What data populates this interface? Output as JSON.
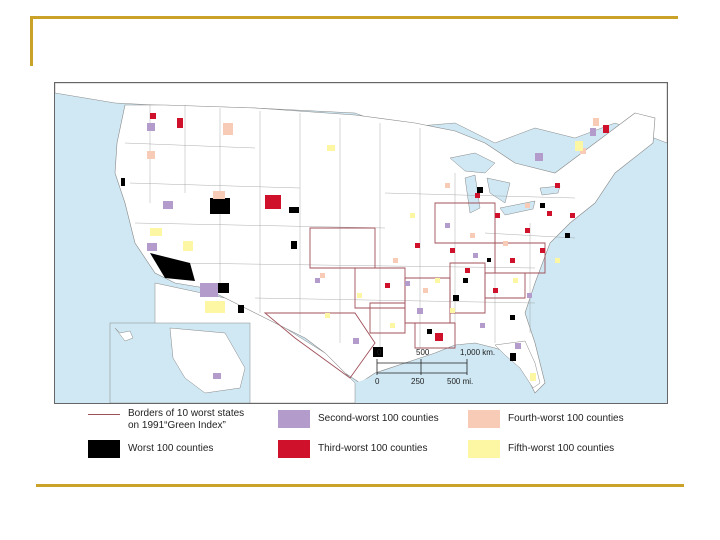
{
  "map": {
    "scale_km": [
      "0",
      "500",
      "1,000 km."
    ],
    "scale_mi": [
      "0",
      "250",
      "500 mi."
    ]
  },
  "legend": {
    "items": [
      {
        "label": "Borders of 10 worst states\non 1991“Green Index”",
        "color": "#a0505a",
        "kind": "line"
      },
      {
        "label": "Worst 100 counties",
        "color": "#000000",
        "kind": "fill"
      },
      {
        "label": "Second-worst 100 counties",
        "color": "#b39ccb",
        "kind": "fill"
      },
      {
        "label": "Third-worst 100 counties",
        "color": "#d0112b",
        "kind": "fill"
      },
      {
        "label": "Fourth-worst 100 counties",
        "color": "#f7cbb5",
        "kind": "fill"
      },
      {
        "label": "Fifth-worst 100 counties",
        "color": "#fdf7a3",
        "kind": "fill"
      }
    ]
  },
  "colors": {
    "frame_accent": "#c9a227",
    "water": "#cfe8f3",
    "land": "#ffffff",
    "worst_state_border": "#a0505a"
  }
}
